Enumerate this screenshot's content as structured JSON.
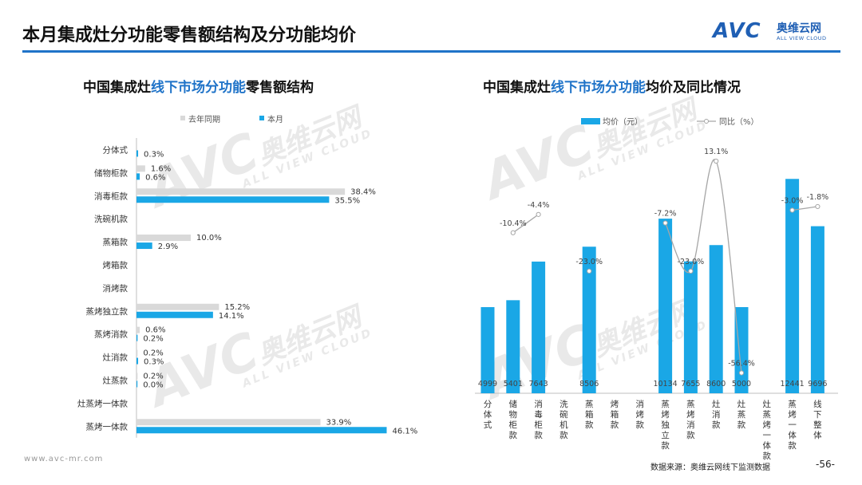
{
  "header": {
    "title": "本月集成灶分功能零售额结构及分功能均价",
    "logo_mark": "AVC",
    "logo_cn": "奥维云网",
    "logo_en": "ALL VIEW CLOUD"
  },
  "watermark": {
    "mark": "AVC",
    "cn": "奥维云网",
    "en": "ALL VIEW CLOUD"
  },
  "left_chart": {
    "title_part1": "中国集成灶",
    "title_part2": "线下市场分功能",
    "title_part3": "零售额结构"
  },
  "right_chart": {
    "title_part1": "中国集成灶",
    "title_part2": "线下市场分功能",
    "title_part3": "均价及同比情况"
  },
  "footer": {
    "url": "www.avc-mr.com",
    "source": "数据来源：奥维云网线下监测数据",
    "page": "-56-"
  },
  "colors": {
    "accent": "#1f73c8",
    "bar_current": "#1aa7e6",
    "bar_prior": "#d9d9d9",
    "line": "#a6a6a6"
  },
  "chart_data": [
    {
      "type": "bar",
      "orientation": "horizontal",
      "categories": [
        "分体式",
        "储物柜款",
        "消毒柜款",
        "洗碗机款",
        "蒸箱款",
        "烤箱款",
        "消烤款",
        "蒸烤独立款",
        "蒸烤消款",
        "灶消款",
        "灶蒸款",
        "灶蒸烤一体款",
        "蒸烤一体款"
      ],
      "series": [
        {
          "name": "去年同期",
          "values": [
            null,
            1.6,
            38.4,
            null,
            10.0,
            null,
            null,
            15.2,
            0.6,
            0.2,
            0.2,
            null,
            33.9
          ],
          "labels": [
            "",
            "1.6%",
            "38.4%",
            "",
            "10.0%",
            "",
            "",
            "15.2%",
            "0.6%",
            "0.2%",
            "0.2%",
            "",
            "33.9%"
          ]
        },
        {
          "name": "本月",
          "values": [
            0.3,
            0.6,
            35.5,
            null,
            2.9,
            null,
            null,
            14.1,
            0.2,
            0.3,
            0.0,
            null,
            46.1
          ],
          "labels": [
            "0.3%",
            "0.6%",
            "35.5%",
            "",
            "2.9%",
            "",
            "",
            "14.1%",
            "0.2%",
            "0.3%",
            "0.0%",
            "",
            "46.1%"
          ]
        }
      ],
      "xlim": [
        0,
        50
      ],
      "legend_position": "top"
    },
    {
      "type": "bar",
      "combo_line": true,
      "categories": [
        "分体式",
        "储物柜款",
        "消毒柜款",
        "洗碗机款",
        "蒸箱款",
        "烤箱款",
        "消烤款",
        "蒸烤独立款",
        "蒸烤消款",
        "灶消款",
        "灶蒸款",
        "灶蒸烤一体款",
        "蒸烤一体款",
        "线下整体"
      ],
      "series": [
        {
          "name": "均价（元）",
          "kind": "bar",
          "values": [
            4999,
            5401,
            7643,
            null,
            8506,
            null,
            null,
            10134,
            7655,
            8600,
            5000,
            null,
            12441,
            9696
          ],
          "labels": [
            "4999",
            "5401",
            "7643",
            "",
            "8506",
            "",
            "",
            "10134",
            "7655",
            "8600",
            "5000",
            "",
            "12441",
            "9696"
          ]
        },
        {
          "name": "同比（%）",
          "kind": "line",
          "values": [
            null,
            -10.4,
            -4.4,
            null,
            -23.0,
            null,
            null,
            -7.2,
            -23.0,
            13.1,
            -56.4,
            null,
            -3.0,
            -1.8
          ],
          "labels": [
            "",
            "-10.4%",
            "-4.4%",
            "",
            "-23.0%",
            "",
            "",
            "-7.2%",
            "-23.0%",
            "13.1%",
            "-56.4%",
            "",
            "-3.0%",
            "-1.8%"
          ]
        }
      ],
      "ylim_bar": [
        0,
        14000
      ],
      "ylim_line": [
        -70,
        20
      ],
      "legend_position": "top"
    }
  ]
}
